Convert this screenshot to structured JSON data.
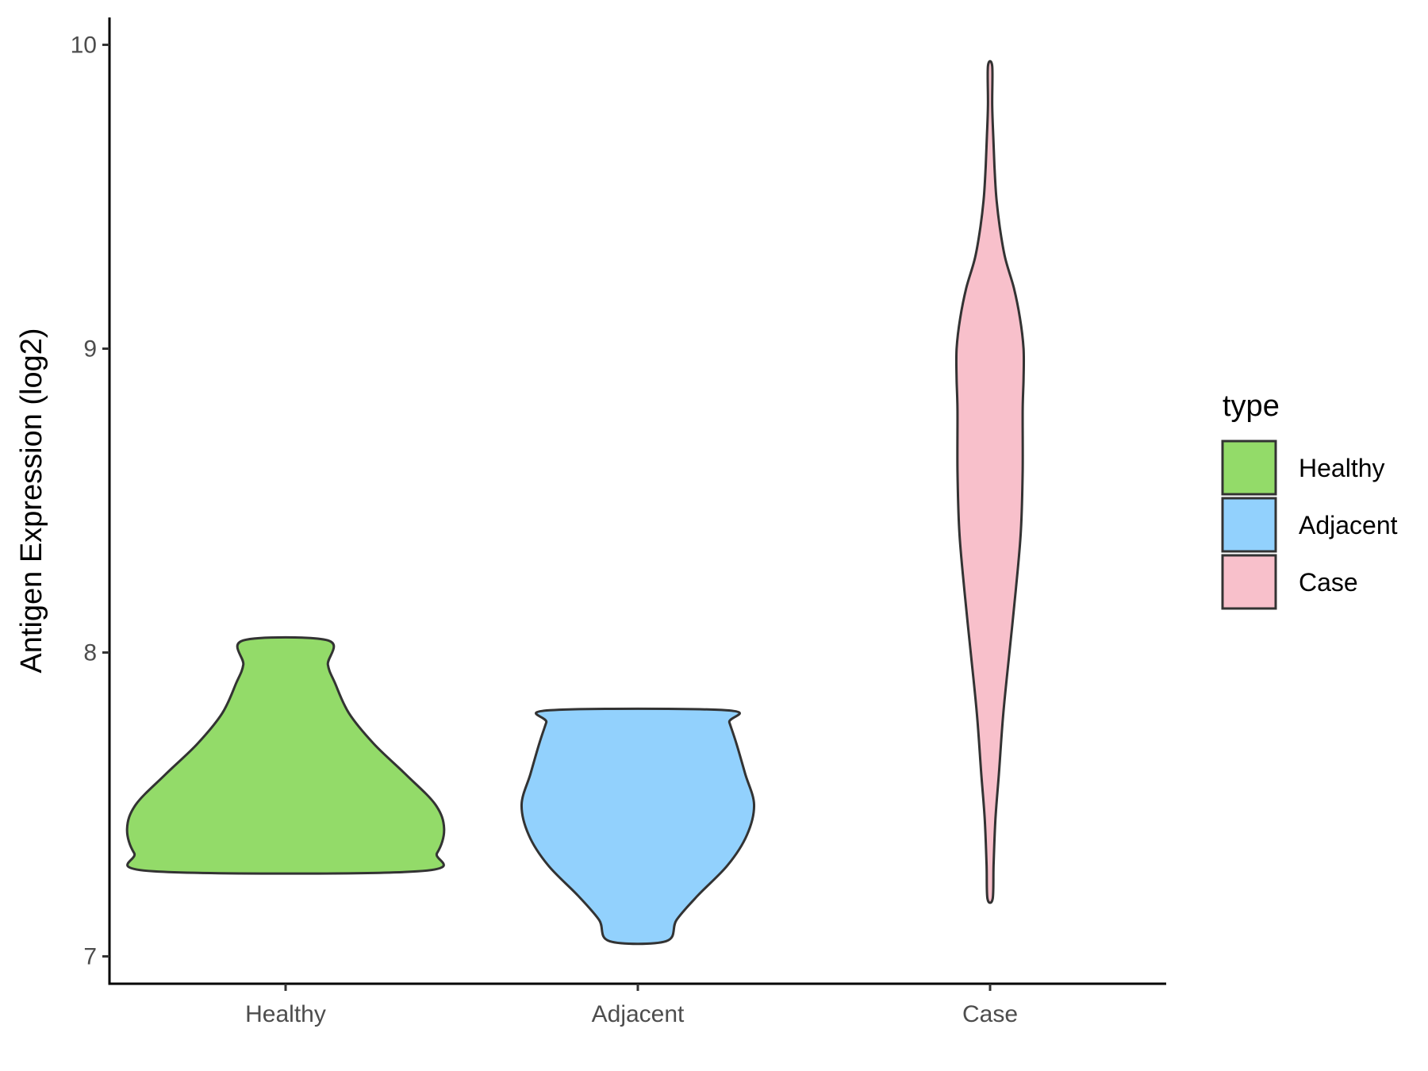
{
  "chart_data": {
    "type": "violin",
    "title": "",
    "xlabel": "",
    "ylabel": "Antigen Expression (log2)",
    "ylim": [
      6.91,
      10.09
    ],
    "yticks": [
      7,
      8,
      9,
      10
    ],
    "categories": [
      "Healthy",
      "Adjacent",
      "Case"
    ],
    "grid": false,
    "legend": {
      "title": "type",
      "position": "right",
      "entries": [
        {
          "label": "Healthy",
          "color": "#93DB69"
        },
        {
          "label": "Adjacent",
          "color": "#92D1FD"
        },
        {
          "label": "Case",
          "color": "#F8C0CB"
        }
      ]
    },
    "outline_color": "#333333",
    "series": [
      {
        "category": "Healthy",
        "color": "#93DB69",
        "min": 7.28,
        "max": 8.04,
        "profile": [
          [
            7.28,
            0.75
          ],
          [
            7.34,
            0.86
          ],
          [
            7.42,
            0.9
          ],
          [
            7.5,
            0.85
          ],
          [
            7.6,
            0.68
          ],
          [
            7.7,
            0.5
          ],
          [
            7.8,
            0.36
          ],
          [
            7.9,
            0.28
          ],
          [
            7.96,
            0.24
          ],
          [
            8.04,
            0.24
          ]
        ]
      },
      {
        "category": "Adjacent",
        "color": "#92D1FD",
        "min": 7.05,
        "max": 7.81,
        "profile": [
          [
            7.05,
            0.16
          ],
          [
            7.12,
            0.22
          ],
          [
            7.2,
            0.34
          ],
          [
            7.3,
            0.51
          ],
          [
            7.4,
            0.62
          ],
          [
            7.5,
            0.66
          ],
          [
            7.6,
            0.61
          ],
          [
            7.7,
            0.56
          ],
          [
            7.77,
            0.52
          ],
          [
            7.81,
            0.5
          ]
        ]
      },
      {
        "category": "Case",
        "color": "#F8C0CB",
        "min": 7.19,
        "max": 9.93,
        "profile": [
          [
            7.19,
            0.015
          ],
          [
            7.3,
            0.02
          ],
          [
            7.45,
            0.03
          ],
          [
            7.6,
            0.05
          ],
          [
            7.8,
            0.075
          ],
          [
            8.0,
            0.11
          ],
          [
            8.2,
            0.145
          ],
          [
            8.4,
            0.175
          ],
          [
            8.6,
            0.185
          ],
          [
            8.8,
            0.185
          ],
          [
            8.9,
            0.19
          ],
          [
            9.0,
            0.19
          ],
          [
            9.1,
            0.17
          ],
          [
            9.2,
            0.135
          ],
          [
            9.3,
            0.085
          ],
          [
            9.4,
            0.055
          ],
          [
            9.5,
            0.035
          ],
          [
            9.6,
            0.025
          ],
          [
            9.7,
            0.018
          ],
          [
            9.8,
            0.012
          ],
          [
            9.93,
            0.012
          ]
        ]
      }
    ]
  }
}
